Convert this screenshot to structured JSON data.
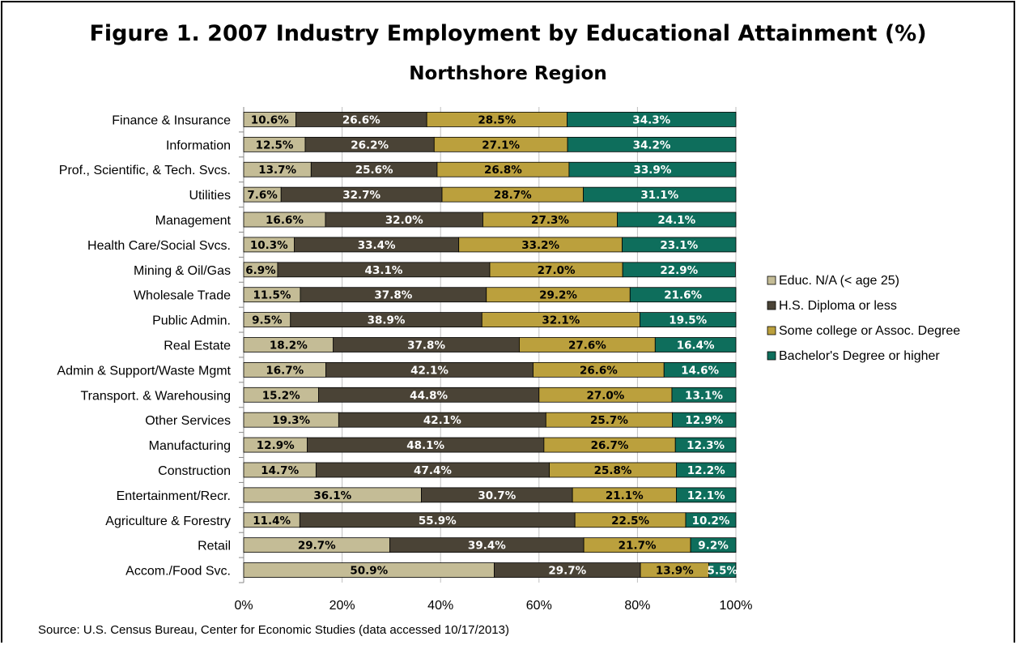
{
  "chart_data": {
    "type": "bar",
    "orientation": "horizontal",
    "stacked": true,
    "title": "Figure 1.  2007 Industry Employment by Educational Attainment (%)",
    "subtitle": "Northshore Region",
    "source": "Source: U.S. Census Bureau, Center for Economic Studies (data accessed 10/17/2013)",
    "xlim": [
      0,
      100
    ],
    "x_tick_labels": [
      "0%",
      "20%",
      "40%",
      "60%",
      "80%",
      "100%"
    ],
    "grid": true,
    "legend_position": "right",
    "categories": [
      "Finance & Insurance",
      "Information",
      "Prof., Scientific, & Tech.  Svcs.",
      "Utilities",
      "Management",
      "Health Care/Social Svcs.",
      "Mining & Oil/Gas",
      "Wholesale Trade",
      "Public Admin.",
      "Real Estate",
      "Admin & Support/Waste Mgmt",
      "Transport. & Warehousing",
      "Other Services",
      "Manufacturing",
      "Construction",
      "Entertainment/Recr.",
      "Agriculture & Forestry",
      "Retail",
      "Accom./Food Svc."
    ],
    "series": [
      {
        "name": "Educ. N/A (< age 25)",
        "color": "#C4BC96",
        "label_color": "#000000",
        "values": [
          10.6,
          12.5,
          13.7,
          7.6,
          16.6,
          10.3,
          6.9,
          11.5,
          9.5,
          18.2,
          16.7,
          15.2,
          19.3,
          12.9,
          14.7,
          36.1,
          11.4,
          29.7,
          50.9
        ]
      },
      {
        "name": "H.S. Diploma or less",
        "color": "#4A4336",
        "label_color": "#FFFFFF",
        "values": [
          26.6,
          26.2,
          25.6,
          32.7,
          32.0,
          33.4,
          43.1,
          37.8,
          38.9,
          37.8,
          42.1,
          44.8,
          42.1,
          48.1,
          47.4,
          30.7,
          55.9,
          39.4,
          29.7
        ]
      },
      {
        "name": "Some college or Assoc. Degree",
        "color": "#BBA03D",
        "label_color": "#000000",
        "values": [
          28.5,
          27.1,
          26.8,
          28.7,
          27.3,
          33.2,
          27.0,
          29.2,
          32.1,
          27.6,
          26.6,
          27.0,
          25.7,
          26.7,
          25.8,
          21.1,
          22.5,
          21.7,
          13.9
        ]
      },
      {
        "name": "Bachelor's Degree or higher",
        "color": "#0E6E5C",
        "label_color": "#FFFFFF",
        "values": [
          34.3,
          34.2,
          33.9,
          31.1,
          24.1,
          23.1,
          22.9,
          21.6,
          19.5,
          16.4,
          14.6,
          13.1,
          12.9,
          12.3,
          12.2,
          12.1,
          10.2,
          9.2,
          5.5
        ]
      }
    ]
  }
}
